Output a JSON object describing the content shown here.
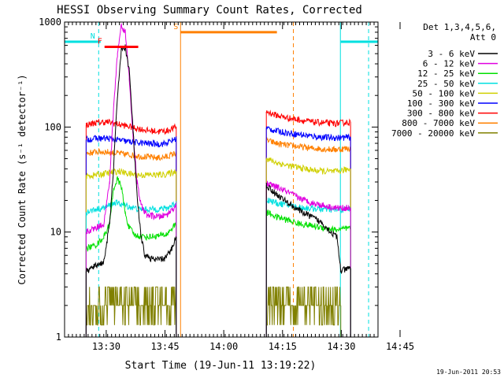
{
  "chart_data": {
    "type": "line",
    "title": "HESSI Observing Summary Count Rates, Corrected",
    "xlabel": "Start Time (19-Jun-11 13:19:22)",
    "ylabel": "Corrected Count Rate (s⁻¹ detector⁻¹)",
    "x_unit": "minutes after 13:19:22",
    "xlim": [
      0,
      80
    ],
    "x_ticks": [
      {
        "value": 10.63,
        "label": "13:30"
      },
      {
        "value": 25.63,
        "label": "13:45"
      },
      {
        "value": 40.63,
        "label": "14:00"
      },
      {
        "value": 55.63,
        "label": "14:15"
      },
      {
        "value": 70.63,
        "label": "14:30"
      },
      {
        "value": 85.63,
        "label": "14:45"
      }
    ],
    "y_scale": "log",
    "ylim": [
      1,
      1000
    ],
    "y_ticks": [
      {
        "value": 1,
        "label": "1"
      },
      {
        "value": 10,
        "label": "10"
      },
      {
        "value": 100,
        "label": "100"
      },
      {
        "value": 1000,
        "label": "1000"
      }
    ],
    "legend_title": [
      "Det 1,3,4,5,6,",
      "Att 0"
    ],
    "legend_position": "right",
    "series": [
      {
        "name": "3 - 6 keV",
        "color": "#000000",
        "points": [
          [
            5.5,
            4.2
          ],
          [
            8,
            4.8
          ],
          [
            10,
            5.2
          ],
          [
            11.5,
            12
          ],
          [
            12.5,
            40
          ],
          [
            13.5,
            200
          ],
          [
            14.5,
            550
          ],
          [
            15.5,
            580
          ],
          [
            16.5,
            350
          ],
          [
            17.5,
            90
          ],
          [
            18.5,
            22
          ],
          [
            19.5,
            9
          ],
          [
            20.5,
            6
          ],
          [
            23,
            5.4
          ],
          [
            25.5,
            5.6
          ],
          [
            27,
            6.5
          ],
          [
            28.5,
            9
          ],
          [
            51.5,
            28
          ],
          [
            54,
            23
          ],
          [
            57,
            19
          ],
          [
            60,
            16
          ],
          [
            63,
            14
          ],
          [
            66,
            12
          ],
          [
            68,
            10
          ],
          [
            69.5,
            9
          ],
          [
            70.5,
            4.3
          ],
          [
            73,
            4.5
          ]
        ]
      },
      {
        "name": "6 - 12 keV",
        "color": "#e000e0",
        "points": [
          [
            5.5,
            10
          ],
          [
            8,
            11
          ],
          [
            10,
            12
          ],
          [
            11.5,
            30
          ],
          [
            12.5,
            150
          ],
          [
            13.5,
            500
          ],
          [
            14.5,
            950
          ],
          [
            15.5,
            800
          ],
          [
            16.5,
            300
          ],
          [
            17.5,
            80
          ],
          [
            18.5,
            30
          ],
          [
            19.5,
            18
          ],
          [
            21,
            14.5
          ],
          [
            24,
            14
          ],
          [
            26,
            14.5
          ],
          [
            28.5,
            18
          ],
          [
            51.5,
            29
          ],
          [
            54,
            27
          ],
          [
            57,
            24
          ],
          [
            60,
            21
          ],
          [
            63,
            19
          ],
          [
            66,
            18
          ],
          [
            69,
            17
          ],
          [
            73,
            17
          ]
        ]
      },
      {
        "name": "12 - 25 keV",
        "color": "#00e000",
        "points": [
          [
            5.5,
            7
          ],
          [
            8,
            7.5
          ],
          [
            10,
            9
          ],
          [
            11.5,
            12
          ],
          [
            12.5,
            26
          ],
          [
            13.5,
            32
          ],
          [
            14.5,
            27
          ],
          [
            15.5,
            15
          ],
          [
            16.5,
            11
          ],
          [
            18,
            9.3
          ],
          [
            21,
            9
          ],
          [
            24,
            9.2
          ],
          [
            26,
            9.5
          ],
          [
            28.5,
            12
          ],
          [
            51.5,
            15.5
          ],
          [
            54,
            14
          ],
          [
            57,
            13
          ],
          [
            60,
            12
          ],
          [
            63,
            11.5
          ],
          [
            66,
            11
          ],
          [
            69,
            10.5
          ],
          [
            73,
            10.8
          ]
        ]
      },
      {
        "name": "25 - 50 keV",
        "color": "#00e0e0",
        "points": [
          [
            5.5,
            15.5
          ],
          [
            8,
            16.5
          ],
          [
            10,
            17
          ],
          [
            11.5,
            18
          ],
          [
            13,
            19
          ],
          [
            14.5,
            18.5
          ],
          [
            16.5,
            17.5
          ],
          [
            19,
            16.5
          ],
          [
            23,
            16.5
          ],
          [
            26,
            16.8
          ],
          [
            28.5,
            19
          ],
          [
            51.5,
            20.5
          ],
          [
            54,
            19
          ],
          [
            57,
            18
          ],
          [
            60,
            17.2
          ],
          [
            63,
            16.8
          ],
          [
            66,
            16.5
          ],
          [
            69,
            16.2
          ],
          [
            73,
            16.5
          ]
        ]
      },
      {
        "name": "50 - 100 keV",
        "color": "#d0d000",
        "points": [
          [
            5.5,
            34
          ],
          [
            8,
            35
          ],
          [
            10,
            36
          ],
          [
            12,
            37
          ],
          [
            14,
            38
          ],
          [
            16,
            36
          ],
          [
            19,
            35
          ],
          [
            23,
            35
          ],
          [
            26,
            35.5
          ],
          [
            28.5,
            38
          ],
          [
            51.5,
            50
          ],
          [
            54,
            46
          ],
          [
            57,
            43
          ],
          [
            60,
            41
          ],
          [
            63,
            39
          ],
          [
            66,
            38
          ],
          [
            69,
            37.5
          ],
          [
            73,
            40
          ]
        ]
      },
      {
        "name": "100 - 300 keV",
        "color": "#0000ff",
        "points": [
          [
            5.5,
            76
          ],
          [
            8,
            78
          ],
          [
            11,
            78
          ],
          [
            14,
            75
          ],
          [
            17,
            72
          ],
          [
            21,
            70
          ],
          [
            24,
            69
          ],
          [
            26,
            70
          ],
          [
            28.5,
            78
          ],
          [
            51.5,
            98
          ],
          [
            54,
            92
          ],
          [
            57,
            88
          ],
          [
            60,
            85
          ],
          [
            63,
            82
          ],
          [
            66,
            80
          ],
          [
            69,
            79
          ],
          [
            73,
            80
          ]
        ]
      },
      {
        "name": "300 - 800 keV",
        "color": "#ff0000",
        "points": [
          [
            5.5,
            105
          ],
          [
            8,
            110
          ],
          [
            11,
            112
          ],
          [
            14,
            106
          ],
          [
            17,
            100
          ],
          [
            21,
            93
          ],
          [
            24,
            91
          ],
          [
            26,
            92
          ],
          [
            28.5,
            100
          ],
          [
            51.5,
            140
          ],
          [
            54,
            130
          ],
          [
            57,
            122
          ],
          [
            60,
            117
          ],
          [
            63,
            112
          ],
          [
            66,
            110
          ],
          [
            69,
            108
          ],
          [
            73,
            112
          ]
        ]
      },
      {
        "name": "800 - 7000 keV",
        "color": "#ff8000",
        "points": [
          [
            5.5,
            56
          ],
          [
            8,
            58
          ],
          [
            11,
            58
          ],
          [
            14,
            56
          ],
          [
            17,
            54
          ],
          [
            21,
            52
          ],
          [
            24,
            51
          ],
          [
            26,
            52
          ],
          [
            28.5,
            57
          ],
          [
            51.5,
            75
          ],
          [
            54,
            70
          ],
          [
            57,
            67
          ],
          [
            60,
            65
          ],
          [
            63,
            63
          ],
          [
            66,
            62
          ],
          [
            69,
            61
          ],
          [
            73,
            63
          ]
        ]
      },
      {
        "name": "7000 - 20000 keV",
        "color": "#808000",
        "points": [
          [
            5.5,
            3
          ],
          [
            8,
            3
          ],
          [
            11,
            3
          ],
          [
            14,
            2
          ],
          [
            17,
            2
          ],
          [
            21,
            2
          ],
          [
            24,
            2.5
          ],
          [
            26,
            3
          ],
          [
            28.5,
            3
          ],
          [
            51.5,
            3
          ],
          [
            54,
            3
          ],
          [
            57,
            2
          ],
          [
            60,
            2
          ],
          [
            63,
            2
          ],
          [
            66,
            2
          ],
          [
            69,
            2
          ],
          [
            70.5,
            2
          ]
        ]
      }
    ],
    "state_bars": [
      {
        "label": "",
        "color": "#00e0e0",
        "from": 0,
        "to": 8.4,
        "y": 650
      },
      {
        "label": "N",
        "color": "#00e0e0",
        "from": 8.4,
        "to": 9.2,
        "y": 650
      },
      {
        "label": "F",
        "color": "#ff0000",
        "from": 10.2,
        "to": 18.8,
        "y": 580
      },
      {
        "label": "S",
        "color": "#ff8000",
        "from": 29.6,
        "to": 54.2,
        "y": 800
      },
      {
        "label": "",
        "color": "#00e0e0",
        "from": 70.5,
        "to": 80,
        "y": 650
      }
    ],
    "vertical_markers": [
      {
        "x": 8.7,
        "color": "#00e0e0",
        "style": "dashed"
      },
      {
        "x": 29.6,
        "color": "#ff8000",
        "style": "solid"
      },
      {
        "x": 58.4,
        "color": "#ff8000",
        "style": "dashed"
      },
      {
        "x": 70.4,
        "color": "#00e0e0",
        "style": "solid"
      },
      {
        "x": 77.6,
        "color": "#00e0e0",
        "style": "dashed"
      }
    ],
    "footer_timestamp": "19-Jun-2011 20:53"
  }
}
